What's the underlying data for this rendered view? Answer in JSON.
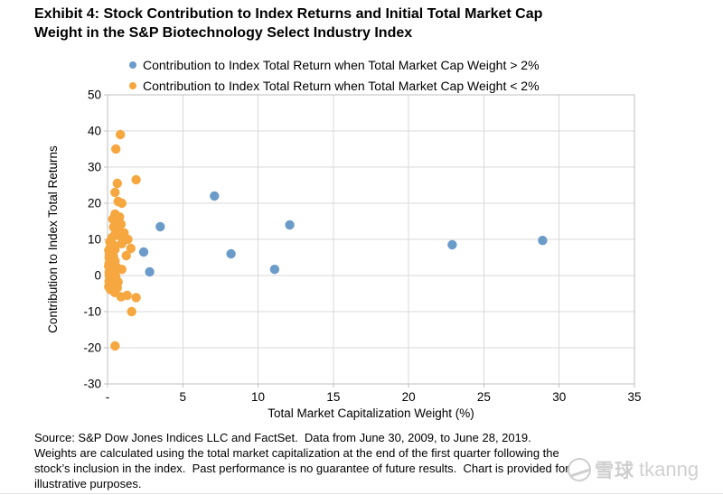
{
  "title": {
    "line1": "Exhibit 4: Stock Contribution to Index Returns and Initial Total Market Cap",
    "line2": "Weight in the S&P Biotechnology Select Industry Index"
  },
  "legend": {
    "items": [
      {
        "label": "Contribution to Index Total Return when Total Market Cap Weight > 2%",
        "color": "#6b9bc9"
      },
      {
        "label": "Contribution to Index Total Return when Total Market Cap Weight < 2%",
        "color": "#f6a73f"
      }
    ]
  },
  "chart_data": {
    "type": "scatter",
    "title": "",
    "xlabel": "Total Market Capitalization Weight (%)",
    "ylabel": "Contribution to Index Total Returns",
    "xlim": [
      0,
      35
    ],
    "ylim": [
      -30,
      50
    ],
    "grid": true,
    "legend_position": "top",
    "x_ticks": {
      "values": [
        0,
        5,
        10,
        15,
        20,
        25,
        30,
        35
      ],
      "labels": [
        "-",
        "5",
        "10",
        "15",
        "20",
        "25",
        "30",
        "35"
      ]
    },
    "y_ticks": {
      "values": [
        50,
        40,
        30,
        20,
        10,
        0,
        -10,
        -20,
        -30
      ],
      "labels": [
        "50",
        "40",
        "30",
        "20",
        "10",
        "0",
        "-10",
        "-20",
        "-30"
      ]
    },
    "series": [
      {
        "name": "Contribution to Index Total Return when Total Market Cap Weight > 2%",
        "color": "#6b9bc9",
        "marker_radius": 5.2,
        "points": [
          [
            7.1,
            22
          ],
          [
            3.5,
            13.5
          ],
          [
            12.1,
            14
          ],
          [
            2.4,
            6.5
          ],
          [
            8.2,
            6
          ],
          [
            11.1,
            1.7
          ],
          [
            2.8,
            1
          ],
          [
            22.9,
            8.5
          ],
          [
            28.9,
            9.7
          ]
        ]
      },
      {
        "name": "Contribution to Index Total Return when Total Market Cap Weight < 2%",
        "color": "#f6a73f",
        "marker_radius": 5.2,
        "points": [
          [
            0.85,
            39
          ],
          [
            0.55,
            35
          ],
          [
            1.9,
            26.5
          ],
          [
            0.65,
            25.5
          ],
          [
            0.5,
            23
          ],
          [
            0.7,
            20.5
          ],
          [
            0.95,
            20
          ],
          [
            0.5,
            17
          ],
          [
            0.8,
            16.2
          ],
          [
            0.35,
            15.6
          ],
          [
            0.6,
            15
          ],
          [
            0.9,
            14.2
          ],
          [
            0.4,
            13.4
          ],
          [
            0.7,
            12.8
          ],
          [
            0.65,
            12.2
          ],
          [
            1.1,
            11.8
          ],
          [
            0.5,
            11.4
          ],
          [
            0.8,
            11
          ],
          [
            0.3,
            10.5
          ],
          [
            1.35,
            10
          ],
          [
            1.0,
            9.7
          ],
          [
            0.15,
            9.3
          ],
          [
            0.95,
            8.8
          ],
          [
            0.45,
            8.3
          ],
          [
            0.2,
            8
          ],
          [
            1.55,
            7.5
          ],
          [
            0.5,
            7.2
          ],
          [
            0.08,
            7
          ],
          [
            0.3,
            6.6
          ],
          [
            0.18,
            6.2
          ],
          [
            0.12,
            5.9
          ],
          [
            1.25,
            5.5
          ],
          [
            0.4,
            5.2
          ],
          [
            0.1,
            4.9
          ],
          [
            0.25,
            4.5
          ],
          [
            0.5,
            4
          ],
          [
            0.32,
            3.6
          ],
          [
            0.1,
            3.3
          ],
          [
            0.35,
            2.9
          ],
          [
            0.07,
            2.6
          ],
          [
            0.6,
            2.3
          ],
          [
            0.2,
            1.9
          ],
          [
            0.95,
            1.7
          ],
          [
            0.45,
            1.3
          ],
          [
            0.1,
            0.9
          ],
          [
            0.3,
            0.4
          ],
          [
            0.12,
            0
          ],
          [
            0.55,
            -0.3
          ],
          [
            0.15,
            -0.8
          ],
          [
            0.4,
            -1.3
          ],
          [
            0.1,
            -1.6
          ],
          [
            0.7,
            -1.8
          ],
          [
            0.25,
            -2.3
          ],
          [
            0.5,
            -2.8
          ],
          [
            0.08,
            -3.1
          ],
          [
            0.65,
            -3.4
          ],
          [
            0.2,
            -3.9
          ],
          [
            0.48,
            -4.7
          ],
          [
            1.3,
            -5.5
          ],
          [
            0.9,
            -5.9
          ],
          [
            1.9,
            -6.1
          ],
          [
            1.6,
            -10
          ],
          [
            0.5,
            -19.5
          ]
        ]
      }
    ]
  },
  "source": {
    "lines": [
      "Source: S&P Dow Jones Indices LLC and FactSet.  Data from June 30, 2009, to June 28, 2019.",
      "Weights are calculated using the total market capitalization at the end of the first quarter following the",
      "stock’s inclusion in the index.  Past performance is no guarantee of future results.  Chart is provided for",
      "illustrative purposes."
    ]
  },
  "watermark": {
    "site": "雪球",
    "user": "tkanng"
  }
}
